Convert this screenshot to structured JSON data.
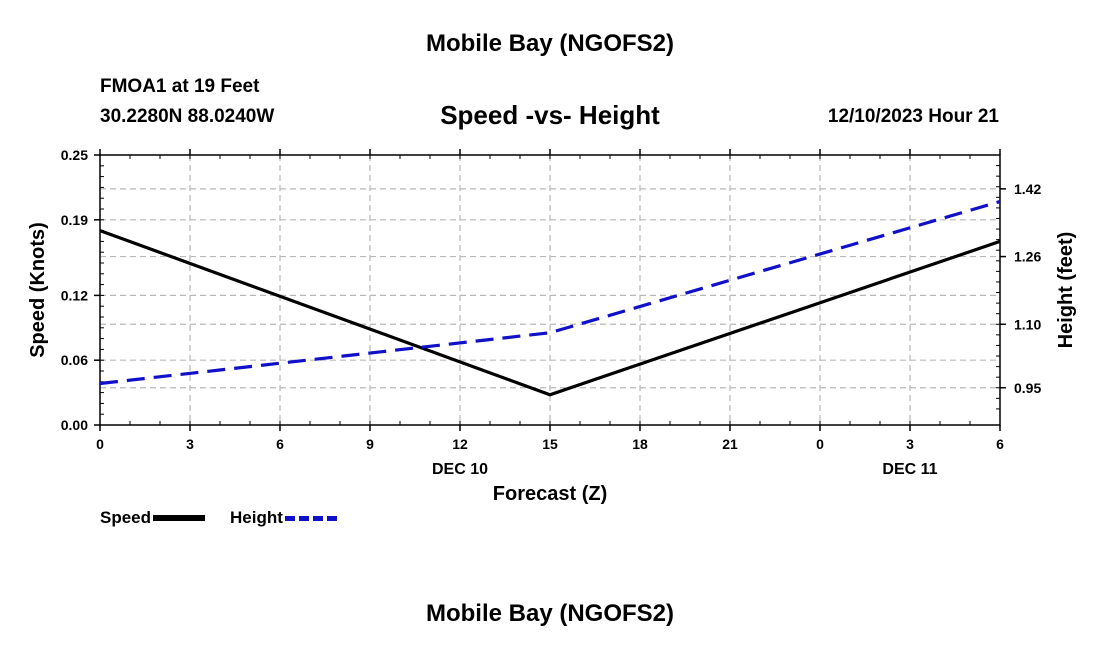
{
  "header": {
    "title": "Mobile Bay (NGOFS2)",
    "station": "FMOA1 at 19 Feet",
    "coords": "30.2280N  88.0240W",
    "subtitle": "Speed -vs- Height",
    "datetime": "12/10/2023 Hour 21"
  },
  "footer": {
    "title": "Mobile Bay (NGOFS2)"
  },
  "legend": {
    "items": [
      {
        "label": "Speed",
        "color": "#000000",
        "style": "solid"
      },
      {
        "label": "Height",
        "color": "#1010c8",
        "style": "dashed"
      }
    ]
  },
  "chart_data": {
    "type": "line",
    "title": "Speed -vs- Height",
    "xlabel": "Forecast (Z)",
    "ylabel": "Speed (Knots)",
    "y2label": "Height (feet)",
    "x": [
      0,
      15,
      30
    ],
    "x_tick_labels": [
      "0",
      "3",
      "6",
      "9",
      "12",
      "15",
      "18",
      "21",
      "0",
      "3",
      "6"
    ],
    "x_date_labels": [
      {
        "label": "DEC 10",
        "at_hour": 12
      },
      {
        "label": "DEC 11",
        "at_hour": 27
      }
    ],
    "xlim": [
      0,
      30
    ],
    "ylim": [
      0,
      0.25
    ],
    "y_ticks": [
      "0.00",
      "0.06",
      "0.12",
      "0.19",
      "0.25"
    ],
    "y2lim": [
      0.862,
      1.5
    ],
    "y2_ticks": [
      "0.95",
      "1.10",
      "1.26",
      "1.42"
    ],
    "grid": true,
    "legend_position": "bottom-left",
    "series": [
      {
        "name": "Speed",
        "axis": "left",
        "color": "#000000",
        "style": "solid",
        "x": [
          0,
          15,
          30
        ],
        "values": [
          0.18,
          0.028,
          0.17
        ]
      },
      {
        "name": "Height",
        "axis": "right",
        "color": "#1010c8",
        "style": "dashed",
        "x": [
          0,
          15,
          30
        ],
        "values": [
          0.96,
          1.08,
          1.39
        ]
      }
    ]
  }
}
